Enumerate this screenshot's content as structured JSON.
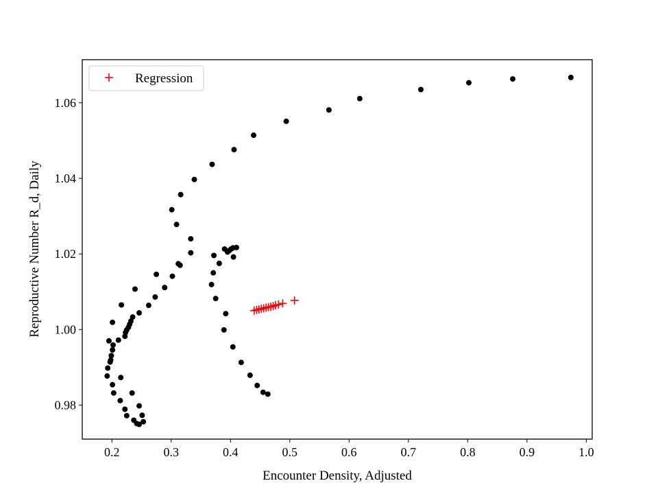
{
  "chart_data": {
    "type": "scatter",
    "title": "",
    "xlabel": "Encounter Density, Adjusted",
    "ylabel": "Reproductive Number R_d, Daily",
    "xlim": [
      0.15,
      1.01
    ],
    "ylim": [
      0.971,
      1.0714
    ],
    "xticks": [
      0.2,
      0.3,
      0.4,
      0.5,
      0.6,
      0.7,
      0.8,
      0.9,
      1.0
    ],
    "xtick_labels": [
      "0.2",
      "0.3",
      "0.4",
      "0.5",
      "0.6",
      "0.7",
      "0.8",
      "0.9",
      "1.0"
    ],
    "yticks": [
      0.98,
      1.0,
      1.02,
      1.04,
      1.06
    ],
    "ytick_labels": [
      "0.98",
      "1.00",
      "1.02",
      "1.04",
      "1.06"
    ],
    "grid": false,
    "legend": {
      "position": "top-left",
      "entries": [
        "Regression"
      ]
    },
    "series": [
      {
        "name": "",
        "marker": "dot",
        "color": "#000000",
        "points": [
          [
            0.974,
            1.0667
          ],
          [
            0.876,
            1.0663
          ],
          [
            0.802,
            1.0653
          ],
          [
            0.721,
            1.0635
          ],
          [
            0.618,
            1.0611
          ],
          [
            0.566,
            1.0581
          ],
          [
            0.494,
            1.0551
          ],
          [
            0.439,
            1.0514
          ],
          [
            0.406,
            1.0476
          ],
          [
            0.369,
            1.0437
          ],
          [
            0.339,
            1.0397
          ],
          [
            0.316,
            1.0357
          ],
          [
            0.301,
            1.0317
          ],
          [
            0.309,
            1.0278
          ],
          [
            0.333,
            1.024
          ],
          [
            0.333,
            1.0203
          ],
          [
            0.312,
            1.0174
          ],
          [
            0.315,
            1.017
          ],
          [
            0.302,
            1.0141
          ],
          [
            0.275,
            1.0146
          ],
          [
            0.289,
            1.0111
          ],
          [
            0.239,
            1.0107
          ],
          [
            0.273,
            1.0086
          ],
          [
            0.262,
            1.0064
          ],
          [
            0.216,
            1.0065
          ],
          [
            0.246,
            1.0044
          ],
          [
            0.235,
            1.0033
          ],
          [
            0.232,
            1.0022
          ],
          [
            0.23,
            1.0014
          ],
          [
            0.228,
            1.0006
          ],
          [
            0.225,
            0.9999
          ],
          [
            0.223,
            0.9992
          ],
          [
            0.222,
            0.9982
          ],
          [
            0.201,
            1.0019
          ],
          [
            0.211,
            0.9972
          ],
          [
            0.195,
            0.997
          ],
          [
            0.202,
            0.9959
          ],
          [
            0.201,
            0.9946
          ],
          [
            0.199,
            0.9931
          ],
          [
            0.198,
            0.9919
          ],
          [
            0.197,
            0.9914
          ],
          [
            0.193,
            0.9898
          ],
          [
            0.192,
            0.9877
          ],
          [
            0.215,
            0.9873
          ],
          [
            0.201,
            0.9854
          ],
          [
            0.234,
            0.9832
          ],
          [
            0.203,
            0.9832
          ],
          [
            0.214,
            0.9812
          ],
          [
            0.246,
            0.9798
          ],
          [
            0.222,
            0.9789
          ],
          [
            0.225,
            0.9772
          ],
          [
            0.251,
            0.9773
          ],
          [
            0.237,
            0.976
          ],
          [
            0.253,
            0.9756
          ],
          [
            0.242,
            0.9751
          ],
          [
            0.246,
            0.9749
          ],
          [
            0.463,
            0.9829
          ],
          [
            0.455,
            0.9834
          ],
          [
            0.445,
            0.9852
          ],
          [
            0.433,
            0.9879
          ],
          [
            0.418,
            0.9913
          ],
          [
            0.404,
            0.9954
          ],
          [
            0.389,
            0.9999
          ],
          [
            0.392,
            1.0042
          ],
          [
            0.375,
            1.0082
          ],
          [
            0.368,
            1.0119
          ],
          [
            0.371,
            1.015
          ],
          [
            0.381,
            1.0175
          ],
          [
            0.372,
            1.0196
          ],
          [
            0.405,
            1.0192
          ],
          [
            0.39,
            1.0213
          ],
          [
            0.395,
            1.0205
          ],
          [
            0.398,
            1.0209
          ],
          [
            0.401,
            1.0213
          ],
          [
            0.404,
            1.0216
          ],
          [
            0.41,
            1.0217
          ]
        ]
      },
      {
        "name": "Regression",
        "marker": "plus",
        "color": "#ff0000",
        "points": [
          [
            0.44,
            1.005
          ],
          [
            0.444,
            1.0052
          ],
          [
            0.448,
            1.0053
          ],
          [
            0.452,
            1.0055
          ],
          [
            0.456,
            1.0056
          ],
          [
            0.46,
            1.0058
          ],
          [
            0.464,
            1.0059
          ],
          [
            0.468,
            1.006
          ],
          [
            0.472,
            1.0062
          ],
          [
            0.476,
            1.0064
          ],
          [
            0.481,
            1.0066
          ],
          [
            0.488,
            1.0069
          ],
          [
            0.508,
            1.0077
          ]
        ]
      }
    ]
  }
}
